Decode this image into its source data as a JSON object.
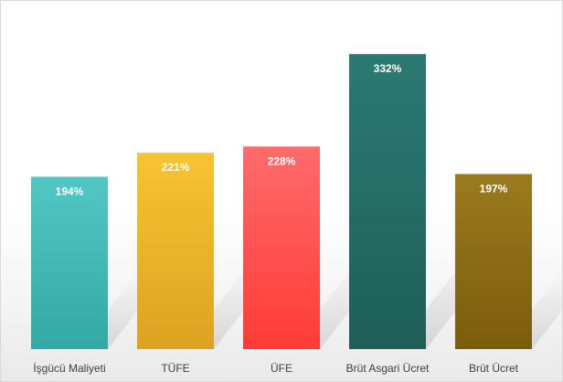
{
  "chart_data": {
    "type": "bar",
    "title": "",
    "xlabel": "",
    "ylabel": "",
    "ylim": [
      0,
      360
    ],
    "grid": false,
    "legend": "none",
    "categories": [
      "İşgücü Maliyeti",
      "TÜFE",
      "ÜFE",
      "Brüt Asgari Ücret",
      "Brüt Ücret"
    ],
    "values": [
      194,
      221,
      228,
      332,
      197
    ],
    "data_labels": [
      "194%",
      "221%",
      "228%",
      "332%",
      "197%"
    ],
    "colors": [
      [
        "#52c8c4",
        "#33a9a5"
      ],
      [
        "#f7c431",
        "#dca322"
      ],
      [
        "#ff6b6b",
        "#ff3b36"
      ],
      [
        "#2b7a72",
        "#1f5e58"
      ],
      [
        "#9a7b1e",
        "#7a5c0c"
      ]
    ]
  }
}
